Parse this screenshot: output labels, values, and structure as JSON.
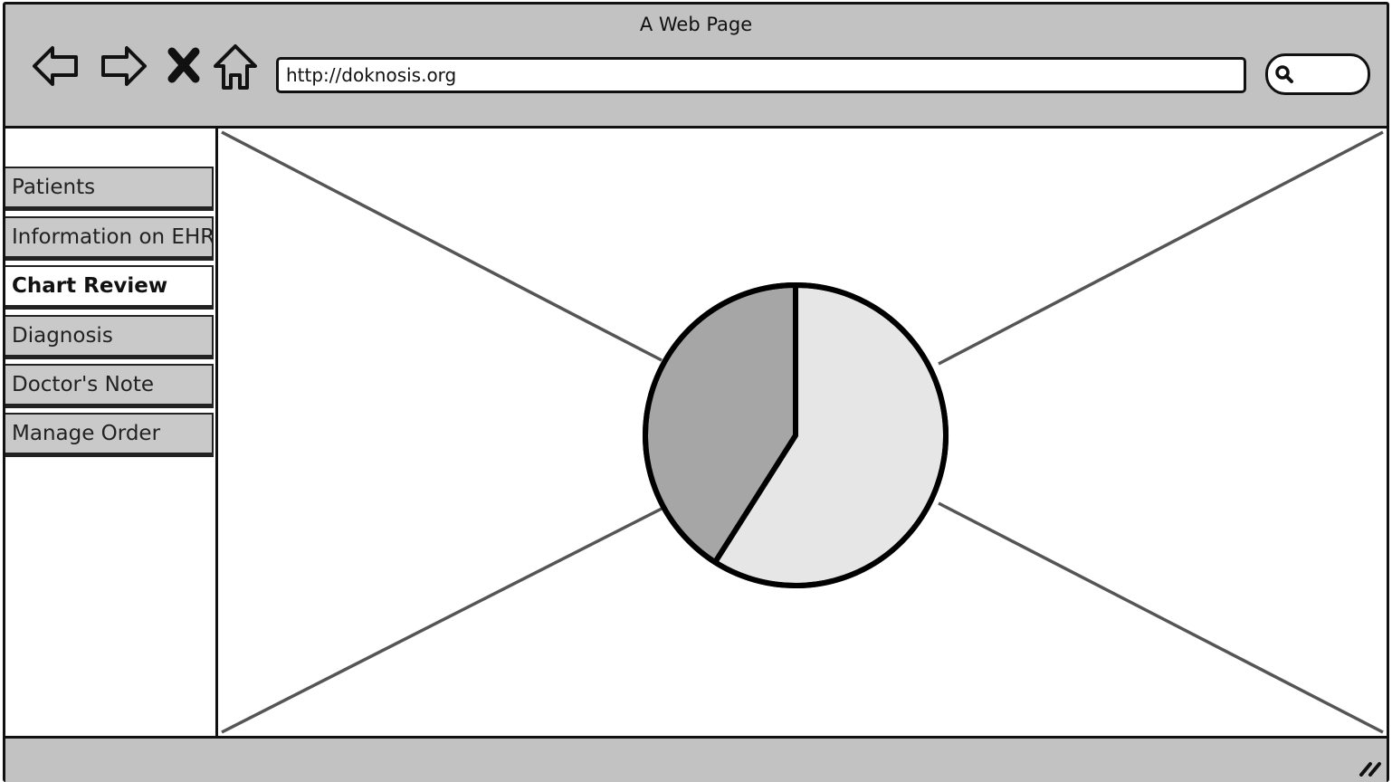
{
  "window": {
    "title": "A Web Page"
  },
  "toolbar": {
    "url": "http://doknosis.org",
    "icons": [
      "back-arrow-icon",
      "forward-arrow-icon",
      "stop-icon",
      "home-icon",
      "search-icon"
    ]
  },
  "sidebar": {
    "items": [
      {
        "label": "Patients",
        "active": false
      },
      {
        "label": "Information on EHR",
        "active": false
      },
      {
        "label": "Chart Review",
        "active": true
      },
      {
        "label": "Diagnosis",
        "active": false
      },
      {
        "label": "Doctor's Note",
        "active": false
      },
      {
        "label": "Manage Order",
        "active": false
      }
    ]
  },
  "main": {
    "content": "image-placeholder with pie-chart-icon"
  },
  "chart_data": {
    "type": "pie",
    "slices": [
      {
        "value": 59,
        "color": "#e6e6e6"
      },
      {
        "value": 41,
        "color": "#a6a6a6"
      }
    ]
  },
  "colors": {
    "chrome": "#c2c2c2",
    "active_tab": "#ffffff",
    "inactive_tab": "#c9c9c9"
  }
}
